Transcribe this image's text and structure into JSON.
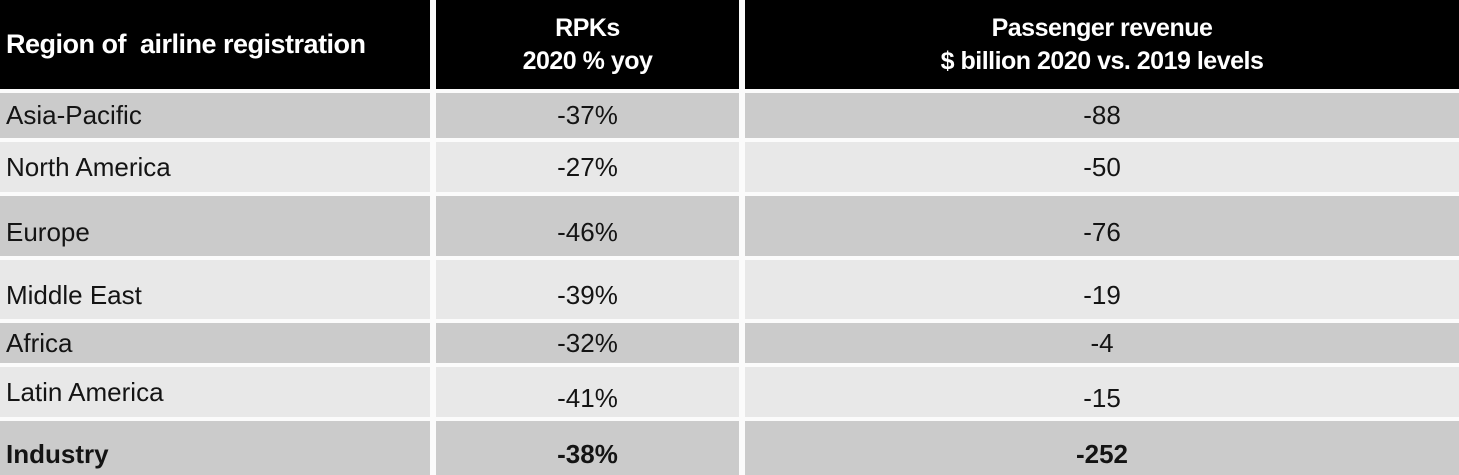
{
  "chart_data": {
    "type": "table",
    "columns": [
      "Region of  airline registration",
      "RPKs\n2020 % yoy",
      "Passenger revenue\n$ billion 2020 vs. 2019 levels"
    ],
    "rows": [
      {
        "region": "Asia-Pacific",
        "rpk": "-37%",
        "revenue": "-88"
      },
      {
        "region": "North America",
        "rpk": "-27%",
        "revenue": "-50"
      },
      {
        "region": "Europe",
        "rpk": "-46%",
        "revenue": "-76"
      },
      {
        "region": "Middle East",
        "rpk": "-39%",
        "revenue": "-19"
      },
      {
        "region": "Africa",
        "rpk": "-32%",
        "revenue": "-4"
      },
      {
        "region": "Latin America",
        "rpk": "-41%",
        "revenue": "-15"
      },
      {
        "region": "Industry",
        "rpk": "-38%",
        "revenue": "-252"
      }
    ],
    "emphasized_row": "Industry",
    "layout": {
      "header_alignment": [
        "left",
        "center",
        "center"
      ],
      "body_alignment": [
        "left",
        "center",
        "center"
      ],
      "row_striping": [
        "dark",
        "light",
        "dark",
        "light",
        "dark",
        "light",
        "dark"
      ]
    },
    "colors": {
      "header_bg": "#000000",
      "header_text": "#ffffff",
      "row_dark": "#cbcbcb",
      "row_light": "#e8e8e8",
      "gutter": "#fbfbfb",
      "body_text": "#141414"
    }
  }
}
